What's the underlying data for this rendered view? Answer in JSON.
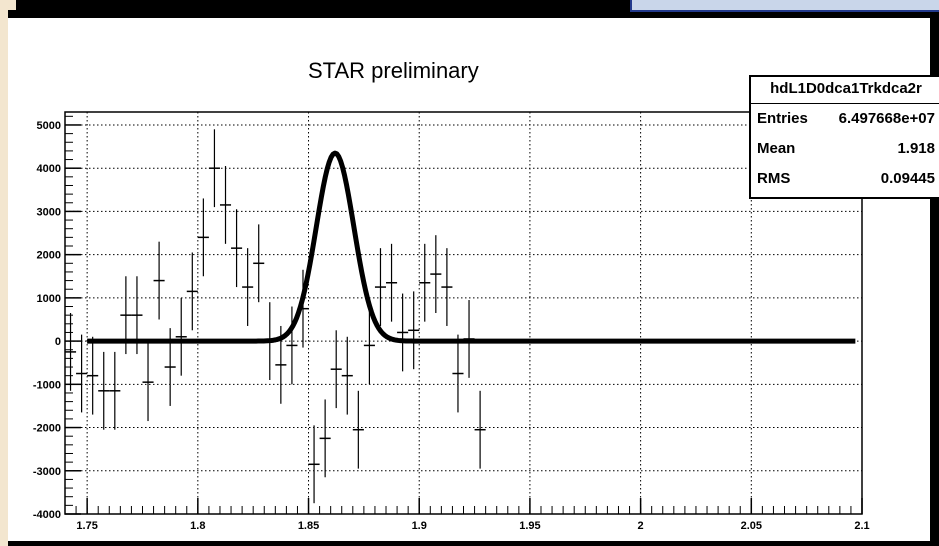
{
  "labels": {
    "star": "STAR preliminary"
  },
  "stats": {
    "title": "hdL1D0dca1Trkdca2r",
    "rows": [
      {
        "label": "Entries",
        "value": "6.497668e+07"
      },
      {
        "label": "Mean",
        "value": "1.918"
      },
      {
        "label": "RMS",
        "value": "0.09445"
      }
    ]
  },
  "chart_data": {
    "type": "scatter",
    "title": "",
    "xlabel": "",
    "ylabel": "",
    "xlim": [
      1.74,
      2.1
    ],
    "ylim": [
      -4000,
      5300
    ],
    "grid": true,
    "x_ticks": [
      1.75,
      1.8,
      1.85,
      1.9,
      1.95,
      2.0,
      2.05,
      2.1
    ],
    "x_tick_labels": [
      "1.75",
      "1.8",
      "1.85",
      "1.9",
      "1.95",
      "2",
      "2.05",
      "2.1"
    ],
    "y_ticks": [
      -4000,
      -3000,
      -2000,
      -1000,
      0,
      1000,
      2000,
      3000,
      4000,
      5000
    ],
    "y_tick_labels": [
      "-4000",
      "-3000",
      "-2000",
      "-1000",
      "0",
      "1000",
      "2000",
      "3000",
      "4000",
      "5000"
    ],
    "bin_half_width": 0.0025,
    "points": [
      {
        "x": 1.7425,
        "y": -250,
        "err": 900
      },
      {
        "x": 1.7475,
        "y": -750,
        "err": 900
      },
      {
        "x": 1.7525,
        "y": -800,
        "err": 900
      },
      {
        "x": 1.7575,
        "y": -1150,
        "err": 900
      },
      {
        "x": 1.7625,
        "y": -1150,
        "err": 900
      },
      {
        "x": 1.7675,
        "y": 600,
        "err": 900
      },
      {
        "x": 1.7725,
        "y": 600,
        "err": 900
      },
      {
        "x": 1.7775,
        "y": -950,
        "err": 900
      },
      {
        "x": 1.7825,
        "y": 1400,
        "err": 900
      },
      {
        "x": 1.7875,
        "y": -600,
        "err": 900
      },
      {
        "x": 1.7925,
        "y": 100,
        "err": 900
      },
      {
        "x": 1.7975,
        "y": 1150,
        "err": 900
      },
      {
        "x": 1.8025,
        "y": 2400,
        "err": 900
      },
      {
        "x": 1.8075,
        "y": 4000,
        "err": 900
      },
      {
        "x": 1.8125,
        "y": 3150,
        "err": 900
      },
      {
        "x": 1.8175,
        "y": 2150,
        "err": 900
      },
      {
        "x": 1.8225,
        "y": 1250,
        "err": 900
      },
      {
        "x": 1.8275,
        "y": 1800,
        "err": 900
      },
      {
        "x": 1.8325,
        "y": 0,
        "err": 900
      },
      {
        "x": 1.8375,
        "y": -550,
        "err": 900
      },
      {
        "x": 1.8425,
        "y": -100,
        "err": 900
      },
      {
        "x": 1.8475,
        "y": 750,
        "err": 900
      },
      {
        "x": 1.8525,
        "y": -2850,
        "err": 900
      },
      {
        "x": 1.8575,
        "y": -2250,
        "err": 900
      },
      {
        "x": 1.8625,
        "y": -650,
        "err": 900
      },
      {
        "x": 1.8675,
        "y": -800,
        "err": 900
      },
      {
        "x": 1.8725,
        "y": -2050,
        "err": 900
      },
      {
        "x": 1.8775,
        "y": -100,
        "err": 900
      },
      {
        "x": 1.8825,
        "y": 1250,
        "err": 900
      },
      {
        "x": 1.8875,
        "y": 1350,
        "err": 900
      },
      {
        "x": 1.8925,
        "y": 200,
        "err": 900
      },
      {
        "x": 1.8975,
        "y": 250,
        "err": 900
      },
      {
        "x": 1.9025,
        "y": 1350,
        "err": 900
      },
      {
        "x": 1.9075,
        "y": 1550,
        "err": 900
      },
      {
        "x": 1.9125,
        "y": 1250,
        "err": 900
      },
      {
        "x": 1.9175,
        "y": -750,
        "err": 900
      },
      {
        "x": 1.9225,
        "y": 50,
        "err": 900
      },
      {
        "x": 1.9275,
        "y": -2050,
        "err": 900
      }
    ],
    "fit": {
      "amplitude": 4350,
      "mean": 1.862,
      "sigma": 0.0085,
      "baseline": 0
    }
  }
}
